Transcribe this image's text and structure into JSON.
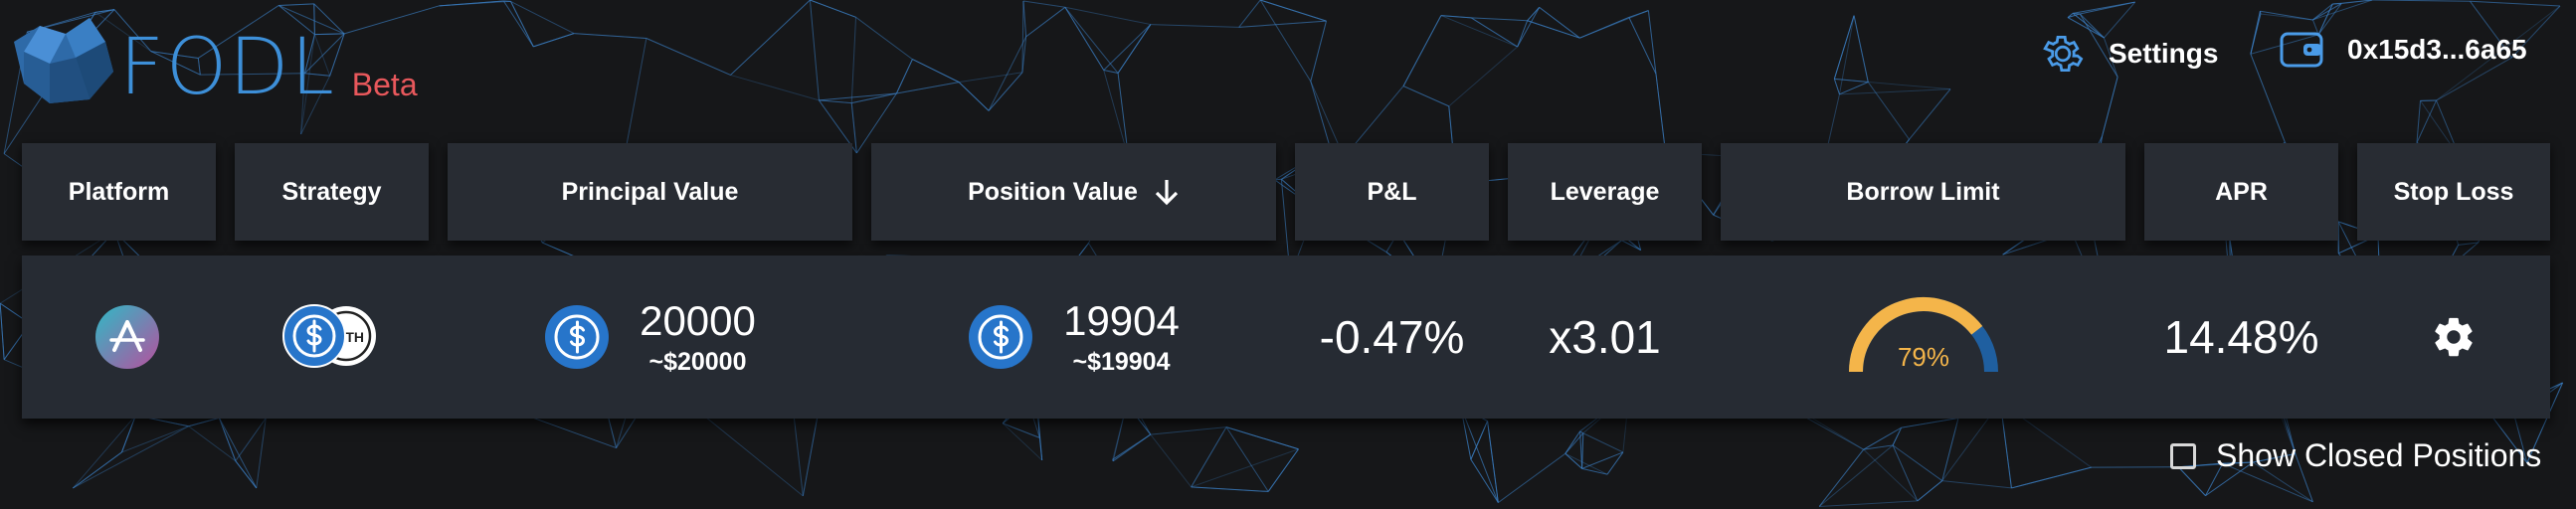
{
  "app": {
    "brand": "FODL",
    "beta_label": "Beta"
  },
  "header": {
    "settings_label": "Settings",
    "wallet_address": "0x15d3...6a65"
  },
  "columns": [
    "Platform",
    "Strategy",
    "Principal Value",
    "Position Value",
    "P&L",
    "Leverage",
    "Borrow Limit",
    "APR",
    "Stop Loss"
  ],
  "sort": {
    "column": "Position Value",
    "direction": "desc"
  },
  "position": {
    "platform_icon": "aave-icon",
    "strategy_icons": [
      "usdc-icon",
      "eth-icon"
    ],
    "strategy_eth_label": "ETH",
    "principal_value": "20000",
    "principal_usd": "~$20000",
    "position_value": "19904",
    "position_usd": "~$19904",
    "pnl": "-0.47%",
    "leverage": "x3.01",
    "borrow_limit_label": "79%",
    "borrow_limit_fraction": 0.79,
    "apr": "14.48%"
  },
  "show_closed": {
    "label": "Show Closed Positions",
    "checked": false
  },
  "colors": {
    "accent": "#3d8fd8",
    "beta": "#e8585c",
    "gauge_fill": "#f4b54a",
    "gauge_track": "#1f5fa0",
    "usdc": "#2775ca"
  }
}
